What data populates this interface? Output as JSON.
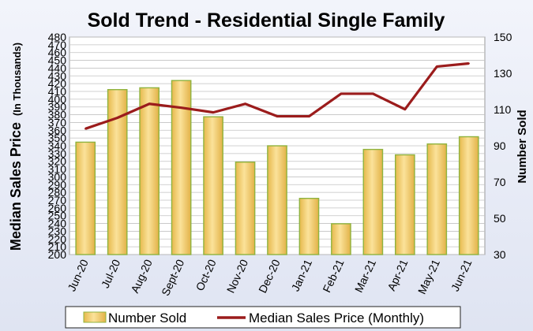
{
  "chart_data": {
    "type": "bar+line",
    "title": "Sold Trend - Residential Single Family",
    "categories": [
      "Jun-20",
      "Jul-20",
      "Aug-20",
      "Sept-20",
      "Oct-20",
      "Nov-20",
      "Dec-20",
      "Jan-21",
      "Feb-21",
      "Mar-21",
      "Apr-21",
      "May-21",
      "Jun-21"
    ],
    "series": [
      {
        "name": "Number Sold",
        "type": "bar",
        "axis": "right",
        "values": [
          92,
          121,
          122,
          126,
          106,
          81,
          90,
          61,
          47,
          88,
          85,
          91,
          95
        ],
        "color": "#f2cf6a"
      },
      {
        "name": "Median Sales Price (Monthly)",
        "type": "line",
        "axis": "left",
        "values": [
          362,
          376,
          394,
          389,
          383,
          394,
          378,
          378,
          407,
          407,
          387,
          442,
          446
        ],
        "color": "#9b1c1c"
      }
    ],
    "ylabel": "Median Sales Price  (In Thousands)",
    "ylabel_main": "Median Sales Price",
    "ylabel_sub": "(In Thousands)",
    "y2label": "Number Sold",
    "ylim": [
      200,
      480
    ],
    "yticks": [
      200,
      210,
      220,
      230,
      240,
      250,
      260,
      270,
      280,
      290,
      300,
      310,
      320,
      330,
      340,
      350,
      360,
      370,
      380,
      390,
      400,
      410,
      420,
      430,
      440,
      450,
      460,
      470,
      480
    ],
    "y2lim": [
      30,
      150
    ],
    "y2ticks": [
      30,
      50,
      70,
      90,
      110,
      130,
      150
    ],
    "grid": true,
    "legend_position": "bottom",
    "colors": {
      "background": "#e4e8f4",
      "plot_background": "#ffffff",
      "grid": "#c2c2c2",
      "bar_fill": "#f2cf6a",
      "bar_edge": "#8fb33f",
      "line": "#9b1c1c"
    }
  }
}
